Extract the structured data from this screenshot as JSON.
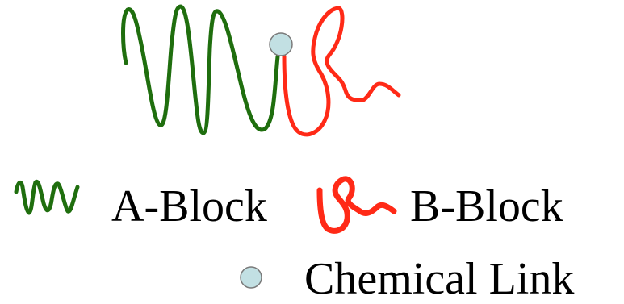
{
  "colors": {
    "a_block": "#1f6e0e",
    "b_block": "#ff2a17",
    "b_block_edge": "#cc1a0e",
    "link_fill": "#c2e0e3",
    "link_stroke": "#7a7a7a",
    "text": "#000000",
    "background": "#ffffff"
  },
  "legend": {
    "a_block": {
      "icon": "green-coil-icon",
      "label": "A-Block"
    },
    "b_block": {
      "icon": "red-coil-icon",
      "label": "B-Block"
    },
    "link": {
      "icon": "chemical-link-circle-icon",
      "label": "Chemical Link"
    }
  }
}
